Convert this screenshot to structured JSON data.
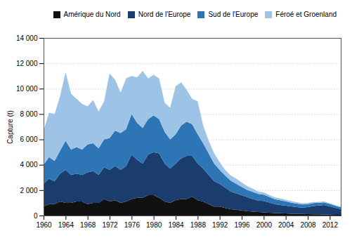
{
  "chart_data": {
    "type": "area",
    "stacked": true,
    "x": [
      1960,
      1961,
      1962,
      1963,
      1964,
      1965,
      1966,
      1967,
      1968,
      1969,
      1970,
      1971,
      1972,
      1973,
      1974,
      1975,
      1976,
      1977,
      1978,
      1979,
      1980,
      1981,
      1982,
      1983,
      1984,
      1985,
      1986,
      1987,
      1988,
      1989,
      1990,
      1991,
      1992,
      1993,
      1994,
      1995,
      1996,
      1997,
      1998,
      1999,
      2000,
      2001,
      2002,
      2003,
      2004,
      2005,
      2006,
      2007,
      2008,
      2009,
      2010,
      2011,
      2012,
      2013,
      2014
    ],
    "series": [
      {
        "name": "Amérique du Nord",
        "color": "#111111",
        "values": [
          700,
          900,
          900,
          1100,
          1000,
          1000,
          1100,
          1100,
          900,
          1000,
          1000,
          1300,
          1100,
          1200,
          1000,
          1100,
          1300,
          1400,
          1400,
          1600,
          1600,
          1400,
          1100,
          1000,
          1200,
          1300,
          1300,
          1500,
          1200,
          1100,
          900,
          700,
          700,
          600,
          500,
          450,
          400,
          350,
          300,
          280,
          250,
          220,
          200,
          180,
          160,
          140,
          130,
          120,
          110,
          100,
          90,
          80,
          70,
          60,
          50
        ]
      },
      {
        "name": "Nord de l'Europe",
        "color": "#1a3d6e",
        "values": [
          1800,
          2000,
          1800,
          2200,
          2600,
          2200,
          2200,
          2100,
          2500,
          2500,
          2200,
          2500,
          2500,
          2700,
          2600,
          2800,
          3500,
          3000,
          2700,
          3200,
          3400,
          3500,
          3000,
          2700,
          2900,
          3200,
          3400,
          3200,
          2900,
          2600,
          2300,
          2000,
          1800,
          1600,
          1400,
          1300,
          1200,
          1100,
          1000,
          900,
          900,
          800,
          700,
          650,
          620,
          580,
          540,
          500,
          550,
          650,
          700,
          750,
          650,
          550,
          450
        ]
      },
      {
        "name": "Sud de l'Europe",
        "color": "#2e75b6",
        "values": [
          1500,
          1700,
          1600,
          1800,
          2300,
          2000,
          2100,
          2000,
          2200,
          2200,
          2100,
          2200,
          2500,
          2800,
          2900,
          2900,
          3200,
          2900,
          2800,
          2800,
          2900,
          2700,
          2500,
          2300,
          2300,
          2600,
          2700,
          2500,
          2300,
          2000,
          1700,
          1400,
          1100,
          950,
          850,
          750,
          650,
          570,
          570,
          520,
          490,
          440,
          390,
          370,
          340,
          290,
          270,
          250,
          240,
          230,
          220,
          210,
          190,
          170,
          150
        ]
      },
      {
        "name": "Féroé et Groenland",
        "color": "#9dc3e6",
        "values": [
          2700,
          3500,
          3700,
          4300,
          5400,
          4400,
          3800,
          3600,
          3000,
          3400,
          2900,
          3000,
          5100,
          4000,
          3200,
          4000,
          3000,
          3600,
          4500,
          3200,
          3200,
          3200,
          2300,
          2500,
          3800,
          3400,
          2500,
          2000,
          2600,
          1400,
          1000,
          800,
          600,
          450,
          400,
          400,
          350,
          300,
          250,
          200,
          180,
          160,
          150,
          140,
          130,
          120,
          110,
          100,
          90,
          80,
          75,
          70,
          60,
          50,
          40
        ]
      }
    ],
    "ylabel": "Capture (t)",
    "xlim": [
      1960,
      2014
    ],
    "xticks": [
      1960,
      1964,
      1968,
      1972,
      1976,
      1980,
      1984,
      1988,
      1992,
      1996,
      2000,
      2004,
      2008,
      2012
    ],
    "ylim": [
      0,
      14000
    ],
    "yticks": [
      0,
      {
        "value": 2000,
        "label": "2 000"
      },
      {
        "value": 4000,
        "label": "4 000"
      },
      {
        "value": 6000,
        "label": "6 000"
      },
      {
        "value": 8000,
        "label": "8 000"
      },
      {
        "value": 10000,
        "label": "10 000"
      },
      {
        "value": 12000,
        "label": "12 000"
      },
      {
        "value": 14000,
        "label": "14 000"
      }
    ],
    "grid": true,
    "legend": "upper right"
  }
}
